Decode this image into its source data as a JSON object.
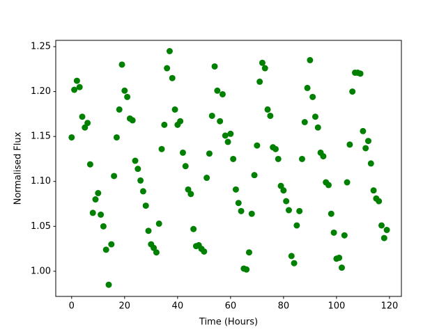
{
  "chart_data": {
    "type": "scatter",
    "xlabel": "Time (Hours)",
    "ylabel": "Normalised Flux",
    "color": "#008000",
    "x": [
      0,
      1,
      2,
      3,
      4,
      5,
      6,
      7,
      8,
      9,
      10,
      11,
      12,
      13,
      14,
      15,
      16,
      17,
      18,
      19,
      20,
      21,
      22,
      23,
      24,
      25,
      26,
      27,
      28,
      29,
      30,
      31,
      32,
      33,
      34,
      35,
      36,
      37,
      38,
      39,
      40,
      41,
      42,
      43,
      44,
      45,
      46,
      47,
      48,
      49,
      50,
      51,
      52,
      53,
      54,
      55,
      56,
      57,
      58,
      59,
      60,
      61,
      62,
      63,
      64,
      65,
      66,
      67,
      68,
      69,
      70,
      71,
      72,
      73,
      74,
      75,
      76,
      77,
      78,
      79,
      80,
      81,
      82,
      83,
      84,
      85,
      86,
      87,
      88,
      89,
      90,
      91,
      92,
      93,
      94,
      95,
      96,
      97,
      98,
      99,
      100,
      101,
      102,
      103,
      104,
      105,
      106,
      107,
      108,
      109,
      110,
      111,
      112,
      113,
      114,
      115,
      116,
      117,
      118,
      119
    ],
    "values": [
      1.149,
      1.202,
      1.212,
      1.205,
      1.172,
      1.16,
      1.165,
      1.119,
      1.065,
      1.08,
      1.087,
      1.063,
      1.05,
      1.024,
      0.985,
      1.03,
      1.106,
      1.149,
      1.18,
      1.23,
      1.201,
      1.194,
      1.17,
      1.168,
      1.123,
      1.114,
      1.101,
      1.089,
      1.073,
      1.045,
      1.03,
      1.026,
      1.021,
      1.053,
      1.136,
      1.163,
      1.226,
      1.245,
      1.215,
      1.18,
      1.163,
      1.167,
      1.132,
      1.117,
      1.091,
      1.086,
      1.047,
      1.028,
      1.029,
      1.025,
      1.022,
      1.104,
      1.131,
      1.173,
      1.228,
      1.201,
      1.167,
      1.197,
      1.151,
      1.144,
      1.153,
      1.125,
      1.091,
      1.076,
      1.067,
      1.003,
      1.002,
      1.021,
      1.064,
      1.107,
      1.14,
      1.211,
      1.232,
      1.226,
      1.18,
      1.173,
      1.138,
      1.136,
      1.125,
      1.095,
      1.09,
      1.078,
      1.068,
      1.017,
      1.009,
      1.051,
      1.067,
      1.125,
      1.166,
      1.204,
      1.235,
      1.194,
      1.172,
      1.16,
      1.132,
      1.128,
      1.099,
      1.096,
      1.064,
      1.043,
      1.014,
      1.015,
      1.004,
      1.04,
      1.099,
      1.141,
      1.2,
      1.221,
      1.221,
      1.22,
      1.156,
      1.137,
      1.145,
      1.12,
      1.09,
      1.081,
      1.078,
      1.051,
      1.037,
      1.046
    ],
    "xlim": [
      -6,
      124.5
    ],
    "ylim": [
      0.972,
      1.257
    ],
    "xticks": [
      0,
      20,
      40,
      60,
      80,
      100,
      120
    ],
    "yticks": [
      {
        "value": 1.0,
        "label": "1.00"
      },
      1.05,
      {
        "value": 1.1,
        "label": "1.10"
      },
      1.15,
      {
        "value": 1.2,
        "label": "1.20"
      },
      1.25
    ]
  }
}
